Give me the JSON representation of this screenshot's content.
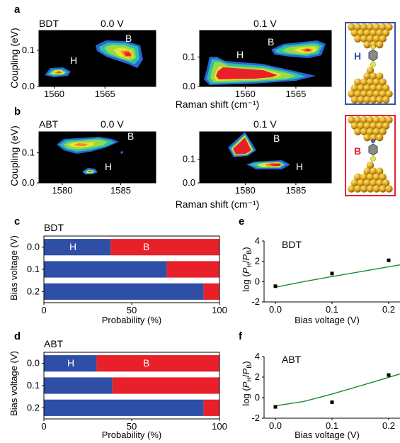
{
  "chart_data": [
    {
      "panel": "a",
      "type": "heatmap",
      "molecule": "BDT",
      "xlabel": "Raman shift (cm⁻¹)",
      "ylabel": "Coupling (eV)",
      "maps": [
        {
          "voltage": "0.0 V",
          "xlim": [
            1558.5,
            1570
          ],
          "ylim": [
            0,
            0.155
          ],
          "xticks": [
            1560,
            1565
          ],
          "yticks": [
            0.0,
            0.1
          ],
          "peaks": [
            {
              "label": "H",
              "x": 1560.8,
              "y": 0.027
            },
            {
              "label": "B",
              "x": 1566.9,
              "y": 0.082
            }
          ]
        },
        {
          "voltage": "0.1 V",
          "xlim": [
            1555.5,
            1568.5
          ],
          "ylim": [
            0,
            0.19
          ],
          "xticks": [
            1560,
            1565
          ],
          "yticks": [
            0.0,
            0.1
          ],
          "peaks": [
            {
              "label": "H",
              "x": 1560.5,
              "y": 0.037
            },
            {
              "label": "B",
              "x": 1566.2,
              "y": 0.121
            }
          ]
        }
      ],
      "inset_label": "H"
    },
    {
      "panel": "b",
      "type": "heatmap",
      "molecule": "ABT",
      "xlabel": "Raman shift (cm⁻¹)",
      "ylabel": "Coupling (eV)",
      "maps": [
        {
          "voltage": "0.0 V",
          "xlim": [
            1578,
            1588
          ],
          "ylim": [
            0,
            0.17
          ],
          "xticks": [
            1580,
            1585
          ],
          "yticks": [
            0.0,
            0.1
          ],
          "peaks": [
            {
              "label": "B",
              "x": 1581.0,
              "y": 0.11
            },
            {
              "label": "H",
              "x": 1581.6,
              "y": 0.03
            }
          ]
        },
        {
          "voltage": "0.1 V",
          "xlim": [
            1575.5,
            1588.5
          ],
          "ylim": [
            0,
            0.215
          ],
          "xticks": [
            1580,
            1585
          ],
          "yticks": [
            0.0,
            0.1
          ],
          "peaks": [
            {
              "label": "B",
              "x": 1579.8,
              "y": 0.135
            },
            {
              "label": "H",
              "x": 1583.4,
              "y": 0.055
            }
          ]
        }
      ],
      "inset_label": "B"
    },
    {
      "panel": "c",
      "type": "bar",
      "orientation": "horizontal",
      "stacked": true,
      "molecule": "BDT",
      "categories": [
        "0.0",
        "0.1",
        "0.2"
      ],
      "series": [
        {
          "name": "H",
          "values": [
            38,
            70,
            91
          ]
        },
        {
          "name": "B",
          "values": [
            62,
            30,
            9
          ]
        }
      ],
      "xlabel": "Probability (%)",
      "ylabel": "Bias voltage (V)",
      "xlim": [
        0,
        100
      ],
      "xticks": [
        0,
        50,
        100
      ]
    },
    {
      "panel": "d",
      "type": "bar",
      "orientation": "horizontal",
      "stacked": true,
      "molecule": "ABT",
      "categories": [
        "0.0",
        "0.1",
        "0.2"
      ],
      "series": [
        {
          "name": "H",
          "values": [
            30,
            39,
            91
          ]
        },
        {
          "name": "B",
          "values": [
            70,
            61,
            9
          ]
        }
      ],
      "xlabel": "Probability (%)",
      "ylabel": "Bias voltage (V)",
      "xlim": [
        0,
        100
      ],
      "xticks": [
        0,
        50,
        100
      ]
    },
    {
      "panel": "e",
      "type": "scatter",
      "molecule": "BDT",
      "x": [
        0.0,
        0.1,
        0.2
      ],
      "y": [
        -0.45,
        0.8,
        2.1
      ],
      "fit": {
        "x": [
          0.0,
          0.05,
          0.1,
          0.15,
          0.22
        ],
        "y": [
          -0.55,
          0.0,
          0.5,
          0.98,
          1.65
        ]
      },
      "xlabel": "Bias voltage (V)",
      "ylabel": "log (Pₕ/Pʙ)",
      "xlim": [
        -0.02,
        0.22
      ],
      "ylim": [
        -2,
        4
      ],
      "xticks": [
        0.0,
        0.1,
        0.2
      ],
      "yticks": [
        -2,
        0,
        2,
        4
      ]
    },
    {
      "panel": "f",
      "type": "scatter",
      "molecule": "ABT",
      "x": [
        0.0,
        0.1,
        0.2
      ],
      "y": [
        -0.9,
        -0.45,
        2.2
      ],
      "fit": {
        "x": [
          0.0,
          0.05,
          0.1,
          0.15,
          0.22
        ],
        "y": [
          -0.8,
          -0.37,
          0.35,
          1.15,
          2.3
        ]
      },
      "xlabel": "Bias voltage (V)",
      "ylabel": "log (Pₕ/Pʙ)",
      "xlim": [
        -0.02,
        0.22
      ],
      "ylim": [
        -2,
        4
      ],
      "xticks": [
        0.0,
        0.1,
        0.2
      ],
      "yticks": [
        -2,
        0,
        2,
        4
      ]
    }
  ],
  "colors": {
    "H": "#2f4fa6",
    "B": "#e8202a",
    "fit": "#1f8a2c",
    "map_bg": "#000000",
    "inset_H_frame": "#3751a8",
    "inset_B_frame": "#e3232b",
    "gold": "#d9a21e"
  }
}
